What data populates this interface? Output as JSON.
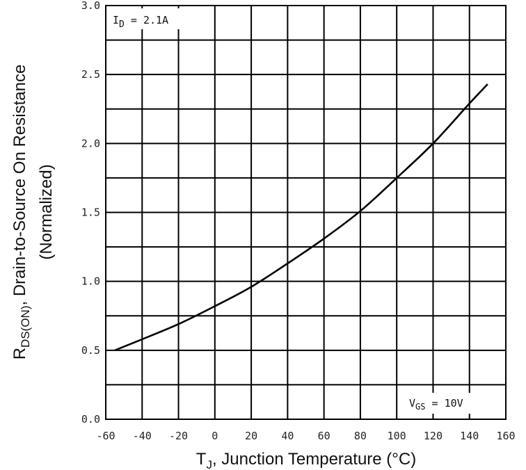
{
  "chart_data": {
    "type": "line",
    "x": [
      -55,
      -40,
      -20,
      0,
      20,
      40,
      60,
      80,
      100,
      120,
      140,
      150
    ],
    "series": [
      {
        "values": [
          0.5,
          0.58,
          0.69,
          0.82,
          0.96,
          1.13,
          1.31,
          1.51,
          1.75,
          2.0,
          2.29,
          2.43
        ]
      }
    ],
    "x_ticks": [
      "-60",
      "-40",
      "-20",
      "0",
      "20",
      "40",
      "60",
      "80",
      "100",
      "120",
      "140",
      "160"
    ],
    "y_ticks": [
      "0.0",
      "0.5",
      "1.0",
      "1.5",
      "2.0",
      "2.5",
      "3.0"
    ],
    "xlim": [
      -60,
      160
    ],
    "ylim": [
      0,
      3
    ],
    "xlabel": {
      "pre": "T",
      "sub": "J",
      "post": ", Junction Temperature (°C)"
    },
    "ylabel": {
      "line1_pre": "R",
      "line1_sub": "DS(ON)",
      "line1_post": ", Drain-to-Source On Resistance",
      "line2": "(Normalized)"
    },
    "annotations": {
      "id": {
        "pre": "I",
        "sub": "D",
        "post": " = 2.1A"
      },
      "vgs": {
        "pre": "V",
        "sub": "GS",
        "post": " = 10V"
      }
    },
    "grid": true,
    "legend": "none"
  }
}
